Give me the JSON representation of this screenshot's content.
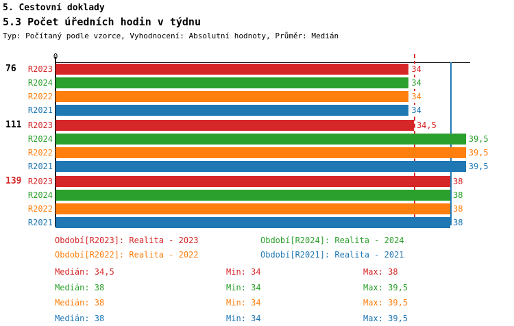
{
  "header": {
    "title": "5. Cestovní doklady",
    "subtitle": "5.3 Počet úředních hodin v týdnu",
    "meta": "Typ: Počítaný podle vzorce, Vyhodnocení: Absolutní hodnoty, Průměr: Medián"
  },
  "colors": {
    "R2023": "#d62728",
    "R2024": "#2ca02c",
    "R2022": "#ff7f0e",
    "R2021": "#1f77b4",
    "axis": "#000000",
    "highlight_group": "#d62728"
  },
  "chart_data": {
    "type": "bar",
    "orientation": "horizontal",
    "title": "5.3 Počet úředních hodin v týdnu",
    "xlabel": "",
    "ylabel": "",
    "x_axis": {
      "min": 0,
      "max": 40,
      "ticks": [
        {
          "value": 0,
          "label": "0"
        }
      ]
    },
    "series_order": [
      "R2023",
      "R2024",
      "R2022",
      "R2021"
    ],
    "groups": [
      {
        "label": "76",
        "label_color": "#000000",
        "bars": [
          {
            "series": "R2023",
            "value": 34,
            "display": "34"
          },
          {
            "series": "R2024",
            "value": 34,
            "display": "34"
          },
          {
            "series": "R2022",
            "value": 34,
            "display": "34"
          },
          {
            "series": "R2021",
            "value": 34,
            "display": "34"
          }
        ]
      },
      {
        "label": "111",
        "label_color": "#000000",
        "bars": [
          {
            "series": "R2023",
            "value": 34.5,
            "display": "34,5"
          },
          {
            "series": "R2024",
            "value": 39.5,
            "display": "39,5"
          },
          {
            "series": "R2022",
            "value": 39.5,
            "display": "39,5"
          },
          {
            "series": "R2021",
            "value": 39.5,
            "display": "39,5"
          }
        ]
      },
      {
        "label": "139",
        "label_color": "#d62728",
        "bars": [
          {
            "series": "R2023",
            "value": 38,
            "display": "38"
          },
          {
            "series": "R2024",
            "value": 38,
            "display": "38"
          },
          {
            "series": "R2022",
            "value": 38,
            "display": "38"
          },
          {
            "series": "R2021",
            "value": 38,
            "display": "38"
          }
        ]
      }
    ],
    "reference_lines": [
      {
        "value": 34.5,
        "color": "#d62728",
        "style": "dashed",
        "series": "R2023"
      },
      {
        "value": 38,
        "color": "#1f77b4",
        "style": "solid",
        "series": "R2021"
      }
    ]
  },
  "legend": {
    "columns": [
      [
        {
          "series": "R2023",
          "text": "Období[R2023]: Realita - 2023"
        },
        {
          "series": "R2022",
          "text": "Období[R2022]: Realita - 2022"
        }
      ],
      [
        {
          "series": "R2024",
          "text": "Období[R2024]: Realita - 2024"
        },
        {
          "series": "R2021",
          "text": "Období[R2021]: Realita - 2021"
        }
      ]
    ]
  },
  "stats": {
    "labels": {
      "median": "Medián:",
      "min": "Min:",
      "max": "Max:"
    },
    "rows": [
      {
        "series": "R2023",
        "median": "34,5",
        "min": "34",
        "max": "38"
      },
      {
        "series": "R2024",
        "median": "38",
        "min": "34",
        "max": "39,5"
      },
      {
        "series": "R2022",
        "median": "38",
        "min": "34",
        "max": "39,5"
      },
      {
        "series": "R2021",
        "median": "38",
        "min": "34",
        "max": "39,5"
      }
    ]
  }
}
